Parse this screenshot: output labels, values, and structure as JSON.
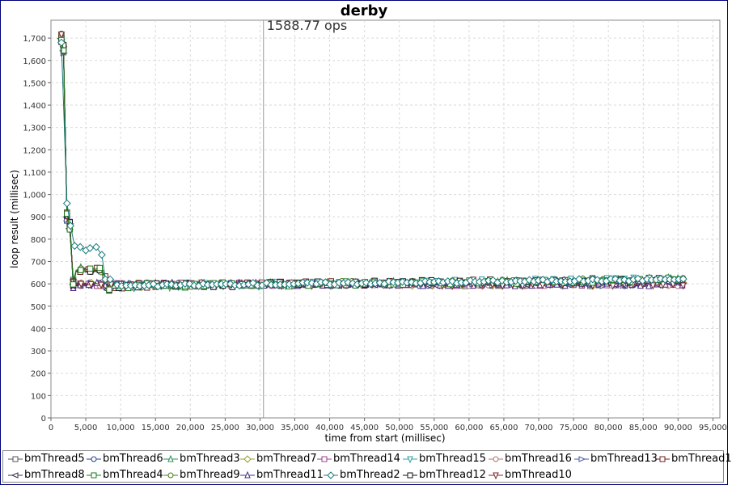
{
  "chart_data": {
    "type": "line",
    "title": "derby",
    "annotation": "1588.77 ops",
    "marker_x": 30500,
    "xlabel": "time from start (millisec)",
    "ylabel": "loop result (millisec)",
    "xlim": [
      0,
      96000
    ],
    "ylim": [
      0,
      1780
    ],
    "x_ticks": [
      "0",
      "5,000",
      "10,000",
      "15,000",
      "20,000",
      "25,000",
      "30,000",
      "35,000",
      "40,000",
      "45,000",
      "50,000",
      "55,000",
      "60,000",
      "65,000",
      "70,000",
      "75,000",
      "80,000",
      "85,000",
      "90,000",
      "95,000"
    ],
    "y_ticks": [
      "0",
      "100",
      "200",
      "300",
      "400",
      "500",
      "600",
      "700",
      "800",
      "900",
      "1,000",
      "1,100",
      "1,200",
      "1,300",
      "1,400",
      "1,500",
      "1,600",
      "1,700"
    ],
    "grid": true,
    "legend_position": "bottom",
    "series": [
      {
        "name": "bmThread5",
        "color": "#555555",
        "marker": "square"
      },
      {
        "name": "bmThread6",
        "color": "#1f3f8f",
        "marker": "circle"
      },
      {
        "name": "bmThread3",
        "color": "#2e8b57",
        "marker": "triangle-up"
      },
      {
        "name": "bmThread7",
        "color": "#9a9a30",
        "marker": "diamond"
      },
      {
        "name": "bmThread14",
        "color": "#9a3f8f",
        "marker": "square"
      },
      {
        "name": "bmThread15",
        "color": "#2fa0a0",
        "marker": "triangle-down"
      },
      {
        "name": "bmThread16",
        "color": "#b07070",
        "marker": "circle"
      },
      {
        "name": "bmThread13",
        "color": "#4a5aa0",
        "marker": "triangle-right"
      },
      {
        "name": "bmThread1",
        "color": "#6b1f1f",
        "marker": "square"
      },
      {
        "name": "bmThread8",
        "color": "#303050",
        "marker": "triangle-left"
      },
      {
        "name": "bmThread4",
        "color": "#1a7a1a",
        "marker": "square"
      },
      {
        "name": "bmThread9",
        "color": "#4a7a1a",
        "marker": "circle"
      },
      {
        "name": "bmThread11",
        "color": "#4a2a8a",
        "marker": "triangle-up"
      },
      {
        "name": "bmThread2",
        "color": "#1a7a7a",
        "marker": "diamond"
      },
      {
        "name": "bmThread12",
        "color": "#111111",
        "marker": "square"
      },
      {
        "name": "bmThread10",
        "color": "#7a2a2a",
        "marker": "triangle-down"
      }
    ],
    "spike": {
      "x": [
        1500,
        1800,
        2300,
        2700,
        3200
      ],
      "y": [
        1700,
        1650,
        900,
        860,
        600
      ]
    },
    "profiles": {
      "baseline": {
        "x": [
          3000,
          8000,
          91000
        ],
        "y": [
          598,
          598,
          598
        ]
      },
      "upper_band": {
        "x": [
          3000,
          7000,
          8500,
          91000
        ],
        "y": [
          665,
          662,
          590,
          620
        ]
      },
      "bmThread2": {
        "x": [
          1500,
          2300,
          2800,
          3400,
          4200,
          5000,
          5600,
          6500,
          7300,
          7800,
          8500
        ],
        "y": [
          1680,
          960,
          860,
          770,
          765,
          750,
          760,
          765,
          730,
          620,
          620
        ]
      }
    }
  }
}
